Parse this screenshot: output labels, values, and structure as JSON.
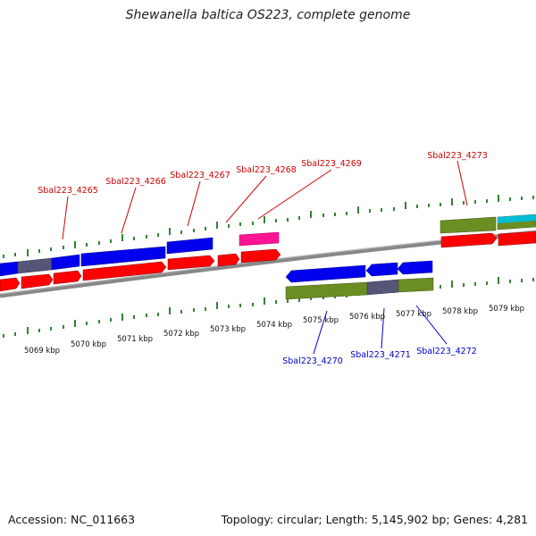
{
  "header": {
    "title": "Shewanella baltica OS223, complete genome"
  },
  "footer": {
    "accession": "Accession: NC_011663",
    "summary": "Topology: circular; Length: 5,145,902 bp; Genes: 4,281"
  },
  "colors": {
    "cds": "#ff0000",
    "gene_blue": "#0000ee",
    "gene_slate": "#555577",
    "gene_olive": "#6b8e23",
    "gene_pink": "#ff1493",
    "gene_cyan": "#00bcd4",
    "tick": "#006400",
    "backbone": "#808080",
    "label_top": "#cc0000",
    "label_bottom": "#0000cc"
  },
  "scale": {
    "unit": "kbp",
    "labels": [
      "5069 kbp",
      "5070 kbp",
      "5071 kbp",
      "5072 kbp",
      "5073 kbp",
      "5074 kbp",
      "5075 kbp",
      "5076 kbp",
      "5077 kbp",
      "5078 kbp",
      "5079 kbp"
    ]
  },
  "top_strand": {
    "labels": [
      "Sbal223_4265",
      "Sbal223_4266",
      "Sbal223_4267",
      "Sbal223_4268",
      "Sbal223_4269",
      "Sbal223_4273"
    ]
  },
  "bottom_strand": {
    "labels": [
      "Sbal223_4270",
      "Sbal223_4271",
      "Sbal223_4272"
    ]
  }
}
